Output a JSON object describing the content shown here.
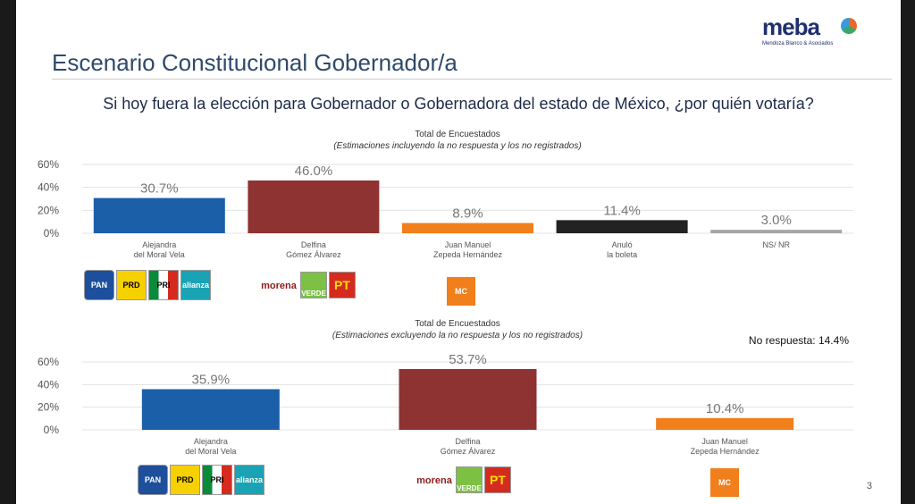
{
  "slide": {
    "title": "Escenario Constitucional Gobernador/a",
    "question": "Si hoy fuera la elección para Gobernador o Gobernadora del estado de México, ¿por quién votaría?",
    "logo_text": "meba",
    "logo_sub": "Mendoza Blanco & Asociados",
    "no_respuesta": "No respuesta: 14.4%",
    "page": "3"
  },
  "parties": {
    "pan": "PAN",
    "prd": "PRD",
    "pri": "PRI",
    "alianza": "alianza",
    "morena": "morena",
    "verde": "VERDE",
    "pt": "PT",
    "mc": "MC"
  },
  "chart_data": [
    {
      "type": "bar",
      "title": "Total de Encuestados",
      "subtitle": "(Estimaciones incluyendo la no respuesta y los no registrados)",
      "categories": [
        "Alejandra\ndel Moral Vela",
        "Delfina\nGómez Álvarez",
        "Juan Manuel\nZepeda Hernández",
        "Anuló\nla boleta",
        "NS/ NR"
      ],
      "values": [
        30.7,
        46.0,
        8.9,
        11.4,
        3.0
      ],
      "labels": [
        "30.7%",
        "46.0%",
        "8.9%",
        "11.4%",
        "3.0%"
      ],
      "colors": [
        "#1a5fa8",
        "#8e3331",
        "#f07f1c",
        "#222222",
        "#a6a6a6"
      ],
      "yticks": [
        "0%",
        "20%",
        "40%",
        "60%"
      ],
      "ylim": [
        0,
        60
      ],
      "grid": true
    },
    {
      "type": "bar",
      "title": "Total de Encuestados",
      "subtitle": "(Estimaciones excluyendo la no respuesta y los no registrados)",
      "categories": [
        "Alejandra\ndel Moral Vela",
        "Delfina\nGómez Álvarez",
        "Juan Manuel\nZepeda Hernández"
      ],
      "values": [
        35.9,
        53.7,
        10.4
      ],
      "labels": [
        "35.9%",
        "53.7%",
        "10.4%"
      ],
      "colors": [
        "#1a5fa8",
        "#8e3331",
        "#f07f1c"
      ],
      "yticks": [
        "0%",
        "20%",
        "40%",
        "60%"
      ],
      "ylim": [
        0,
        60
      ],
      "grid": true
    }
  ]
}
